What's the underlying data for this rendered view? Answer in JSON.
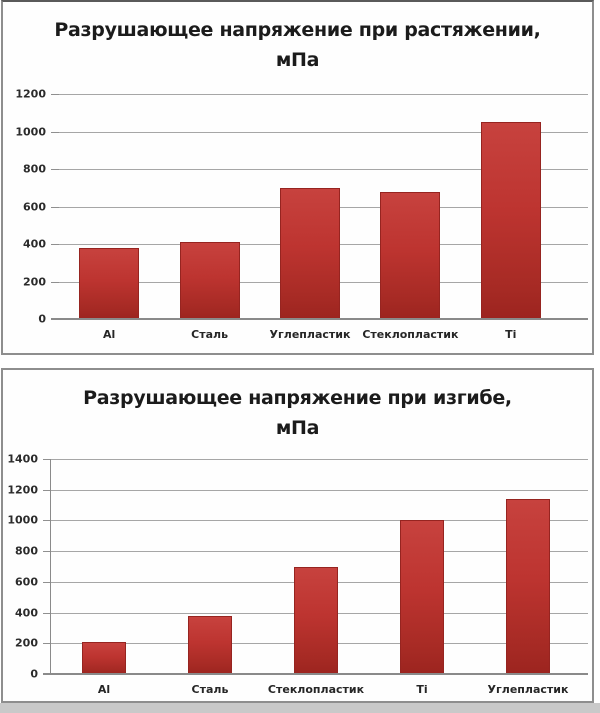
{
  "page": {
    "background": "#ffffff",
    "outside_strip_color": "#c9c9c9"
  },
  "colors": {
    "bar_fill_top": "#c7423e",
    "bar_fill_bottom": "#9c241f",
    "bar_border": "#962420",
    "gridline": "#a6a6a6",
    "axis_line": "#8a8a8a",
    "label_text": "#262626",
    "title_text": "#1b1b1b",
    "panel_border": "#8e8e8e",
    "panel_background": "#fefefe"
  },
  "chart_data": [
    {
      "type": "bar",
      "title": "Разрушающее напряжение при растяжении, мПа",
      "title_lines": [
        "Разрушающее напряжение при растяжении,",
        "мПа"
      ],
      "categories": [
        "Al",
        "Сталь",
        "Углепластик",
        "Стеклопластик",
        "Ti"
      ],
      "values": [
        380,
        410,
        700,
        680,
        1050
      ],
      "xlabel": "",
      "ylabel": "",
      "ylim": [
        0,
        1200
      ],
      "ytick_step": 200,
      "ytick_labels": [
        "0",
        "200",
        "400",
        "600",
        "800",
        "1000",
        "1200"
      ],
      "grid": "horizontal",
      "legend": "none"
    },
    {
      "type": "bar",
      "title": "Разрушающее напряжение при изгибе, мПа",
      "title_lines": [
        "Разрушающее напряжение при изгибе,",
        "мПа"
      ],
      "categories": [
        "Al",
        "Сталь",
        "Стеклопластик",
        "Ti",
        "Углепластик"
      ],
      "values": [
        210,
        380,
        700,
        1000,
        1140
      ],
      "xlabel": "",
      "ylabel": "",
      "ylim": [
        0,
        1400
      ],
      "ytick_step": 200,
      "ytick_labels": [
        "0",
        "200",
        "400",
        "600",
        "800",
        "1000",
        "1200",
        "1400"
      ],
      "grid": "horizontal",
      "legend": "none"
    }
  ]
}
